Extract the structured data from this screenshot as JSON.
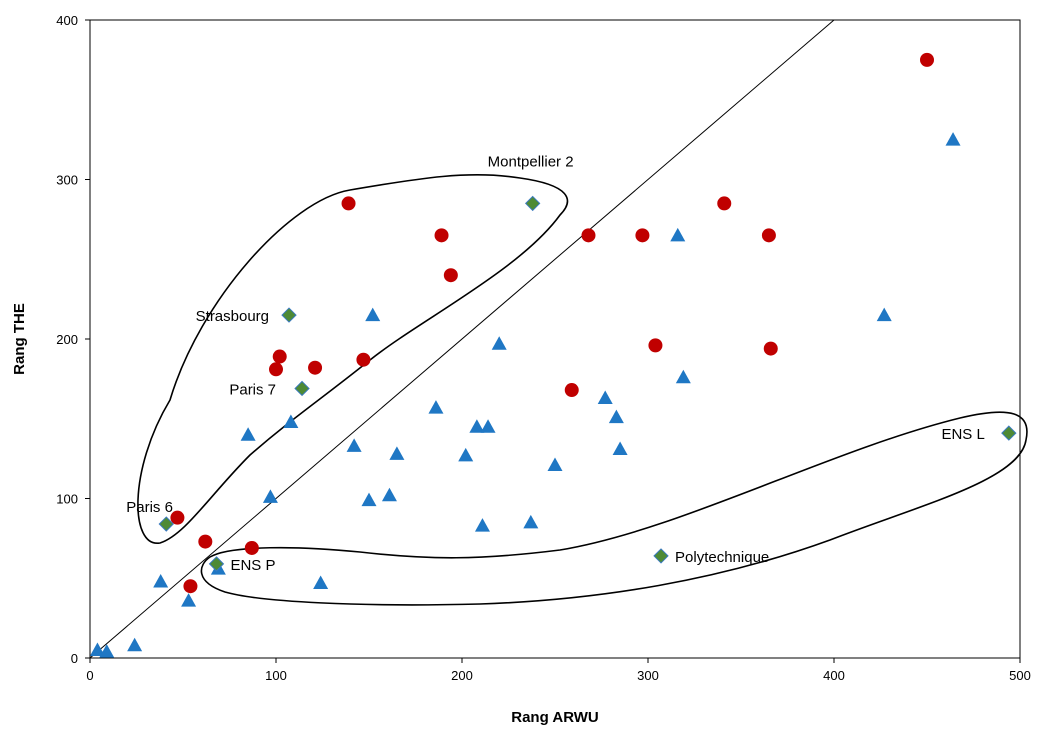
{
  "chart_data": {
    "type": "scatter",
    "title": "",
    "xlabel": "Rang ARWU",
    "ylabel": "Rang THE",
    "xlim": [
      0,
      500
    ],
    "ylim": [
      0,
      400
    ],
    "xticks": [
      "0",
      "100",
      "200",
      "300",
      "400",
      "500"
    ],
    "yticks": [
      "0",
      "100",
      "200",
      "300",
      "400"
    ],
    "grid": false,
    "legend": "none",
    "reference_line": {
      "from": [
        0,
        0
      ],
      "to": [
        400,
        400
      ]
    },
    "colors": {
      "circle": "#c00000",
      "triangle": "#1f77c4",
      "diamond": "#4e8a35",
      "diamond_stroke": "#3a7abf"
    },
    "series": [
      {
        "marker": "circle",
        "points": [
          [
            450,
            375
          ],
          [
            139,
            285
          ],
          [
            189,
            265
          ],
          [
            194,
            240
          ],
          [
            268,
            265
          ],
          [
            297,
            265
          ],
          [
            341,
            285
          ],
          [
            365,
            265
          ],
          [
            366,
            194
          ],
          [
            304,
            196
          ],
          [
            259,
            168
          ],
          [
            147,
            187
          ],
          [
            121,
            182
          ],
          [
            102,
            189
          ],
          [
            100,
            181
          ],
          [
            47,
            88
          ],
          [
            62,
            73
          ],
          [
            87,
            69
          ],
          [
            54,
            45
          ]
        ]
      },
      {
        "marker": "triangle",
        "points": [
          [
            464,
            325
          ],
          [
            316,
            265
          ],
          [
            427,
            215
          ],
          [
            152,
            215
          ],
          [
            220,
            197
          ],
          [
            319,
            176
          ],
          [
            277,
            163
          ],
          [
            283,
            151
          ],
          [
            186,
            157
          ],
          [
            208,
            145
          ],
          [
            214,
            145
          ],
          [
            108,
            148
          ],
          [
            85,
            140
          ],
          [
            142,
            133
          ],
          [
            165,
            128
          ],
          [
            202,
            127
          ],
          [
            285,
            131
          ],
          [
            250,
            121
          ],
          [
            97,
            101
          ],
          [
            161,
            102
          ],
          [
            150,
            99
          ],
          [
            237,
            85
          ],
          [
            211,
            83
          ],
          [
            38,
            48
          ],
          [
            124,
            47
          ],
          [
            69,
            56
          ],
          [
            53,
            36
          ],
          [
            24,
            8
          ],
          [
            4,
            5
          ],
          [
            9,
            4
          ]
        ]
      },
      {
        "marker": "diamond",
        "points": [
          {
            "x": 238,
            "y": 285,
            "label": "Montpellier 2"
          },
          {
            "x": 107,
            "y": 215,
            "label": "Strasbourg"
          },
          {
            "x": 114,
            "y": 169,
            "label": "Paris 7"
          },
          {
            "x": 41,
            "y": 84,
            "label": "Paris 6"
          },
          {
            "x": 68,
            "y": 59,
            "label": "ENS P"
          },
          {
            "x": 307,
            "y": 64,
            "label": "Polytechnique"
          },
          {
            "x": 494,
            "y": 141,
            "label": "ENS L"
          }
        ]
      }
    ]
  }
}
